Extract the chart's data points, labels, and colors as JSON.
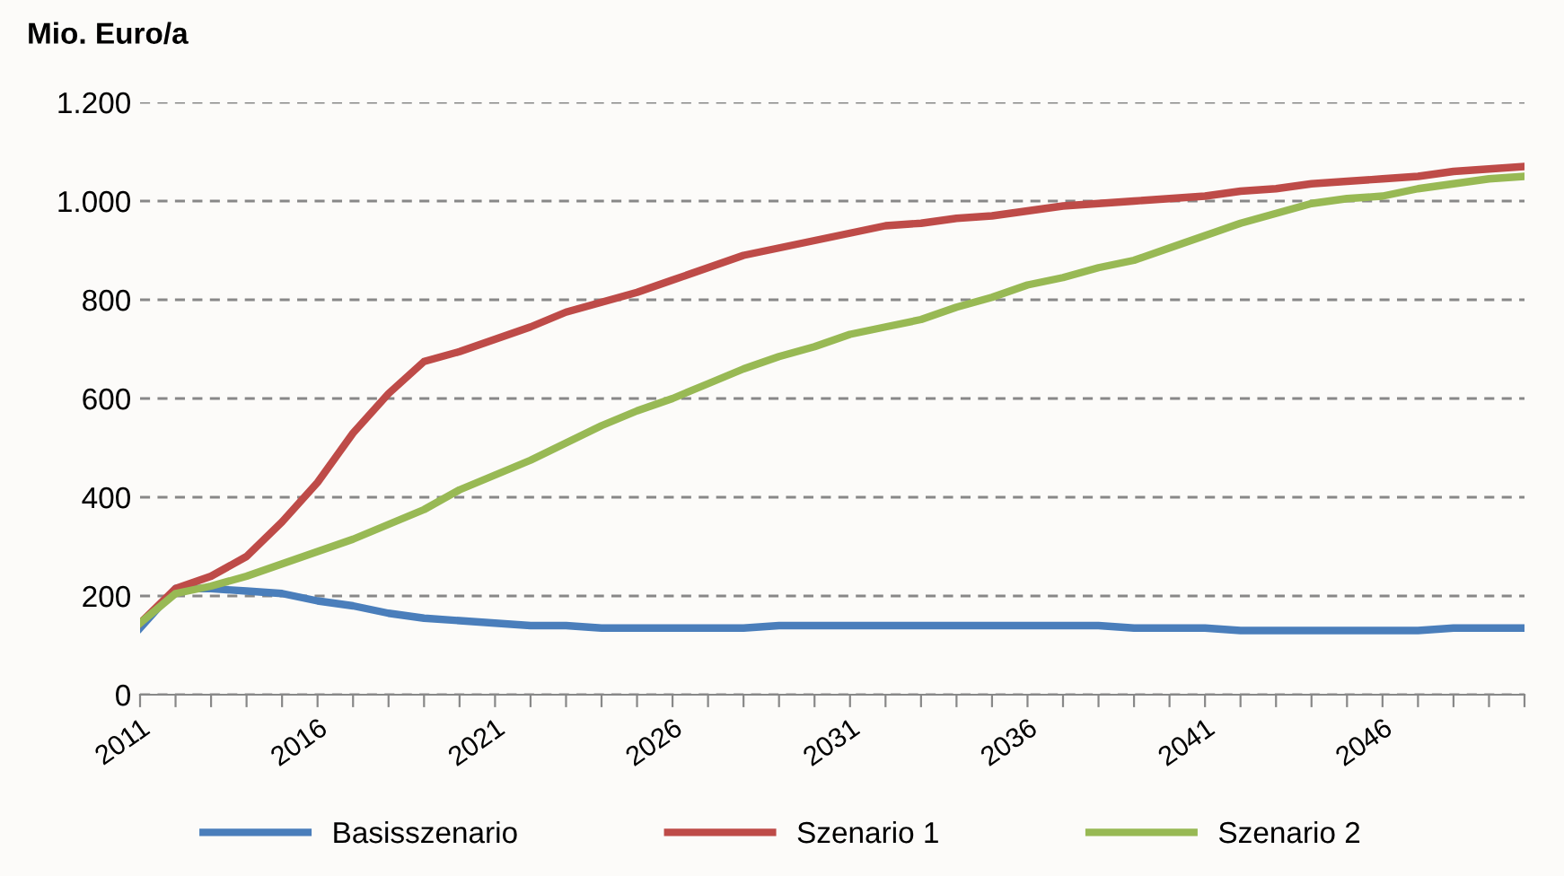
{
  "chart_data": {
    "type": "line",
    "ylabel": "Mio. Euro/a",
    "categories": [
      "2011",
      null,
      null,
      null,
      null,
      "2016",
      null,
      null,
      null,
      null,
      "2021",
      null,
      null,
      null,
      null,
      "2026",
      null,
      null,
      null,
      null,
      "2031",
      null,
      null,
      null,
      null,
      "2036",
      null,
      null,
      null,
      null,
      "2041",
      null,
      null,
      null,
      null,
      "2046",
      null,
      null,
      null,
      null
    ],
    "series": [
      {
        "name": "Basisszenario",
        "color": "#4a7ebb",
        "values": [
          135,
          215,
          215,
          210,
          205,
          190,
          180,
          165,
          155,
          150,
          145,
          140,
          140,
          135,
          135,
          135,
          135,
          135,
          140,
          140,
          140,
          140,
          140,
          140,
          140,
          140,
          140,
          140,
          135,
          135,
          135,
          130,
          130,
          130,
          130,
          130,
          130,
          135,
          135,
          135
        ]
      },
      {
        "name": "Szenario 1",
        "color": "#be4b48",
        "values": [
          145,
          215,
          240,
          280,
          350,
          430,
          530,
          610,
          675,
          695,
          720,
          745,
          775,
          795,
          815,
          840,
          865,
          890,
          905,
          920,
          935,
          950,
          955,
          965,
          970,
          980,
          990,
          995,
          1000,
          1005,
          1010,
          1020,
          1025,
          1035,
          1040,
          1045,
          1050,
          1060,
          1065,
          1070
        ]
      },
      {
        "name": "Szenario 2",
        "color": "#98b954",
        "values": [
          145,
          205,
          220,
          240,
          265,
          290,
          315,
          345,
          375,
          415,
          445,
          475,
          510,
          545,
          575,
          600,
          630,
          660,
          685,
          705,
          730,
          745,
          760,
          785,
          805,
          830,
          845,
          865,
          880,
          905,
          930,
          955,
          975,
          995,
          1005,
          1010,
          1025,
          1035,
          1045,
          1050
        ]
      }
    ],
    "ylim": [
      0,
      1200
    ],
    "yticks": [
      0,
      200,
      400,
      600,
      800,
      {
        "value": 1000,
        "label": "1.000"
      },
      {
        "value": 1200,
        "label": "1.200"
      }
    ],
    "grid": "y",
    "legend": "bottom",
    "marker": "none",
    "line_style": "solid"
  }
}
